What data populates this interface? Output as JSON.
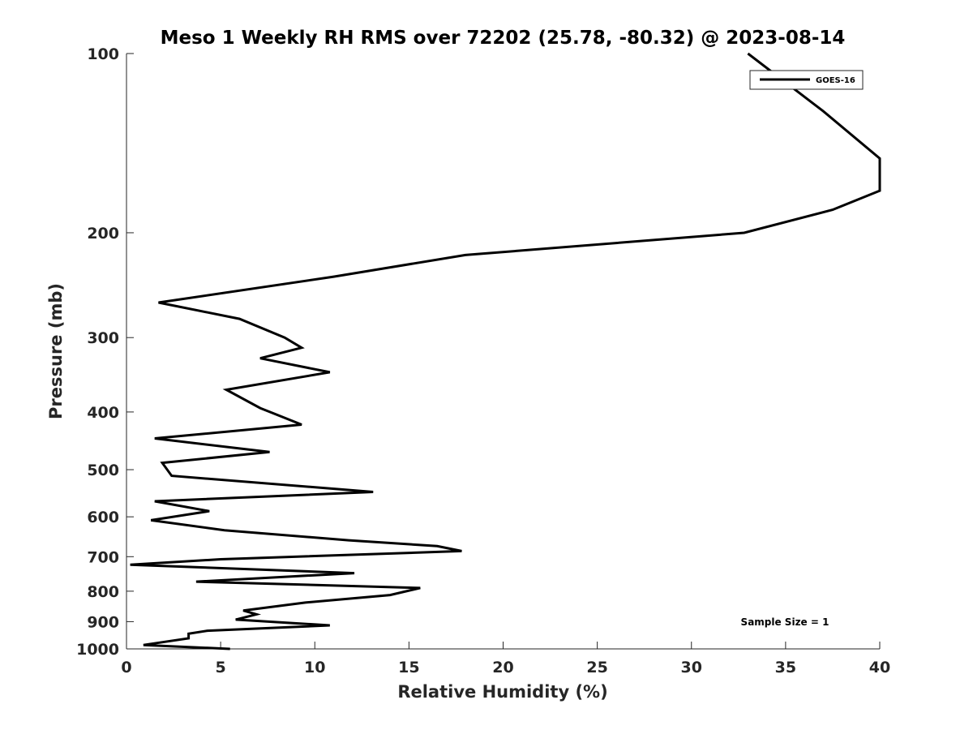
{
  "chart_data": {
    "type": "line",
    "title": "Meso 1 Weekly RH RMS over 72202 (25.78, -80.32) @ 2023-08-14",
    "xlabel": "Relative Humidity (%)",
    "ylabel": "Pressure (mb)",
    "xlim": [
      0,
      40
    ],
    "ylim": [
      100,
      1000
    ],
    "yscale": "log",
    "y_reversed": true,
    "grid": false,
    "legend_position": "top-right",
    "x_ticks": [
      0,
      5,
      10,
      15,
      20,
      25,
      30,
      35,
      40
    ],
    "y_ticks": [
      100,
      200,
      300,
      400,
      500,
      600,
      700,
      800,
      900,
      1000
    ],
    "annotation": "Sample Size = 1",
    "series": [
      {
        "name": "GOES-16",
        "color": "#000000",
        "points": [
          [
            33.0,
            100
          ],
          [
            37.0,
            125
          ],
          [
            40.0,
            150
          ],
          [
            40.0,
            170
          ],
          [
            37.5,
            183
          ],
          [
            32.8,
            200
          ],
          [
            18.0,
            218
          ],
          [
            11.0,
            237
          ],
          [
            1.7,
            262
          ],
          [
            6.0,
            279
          ],
          [
            8.4,
            300
          ],
          [
            9.3,
            312
          ],
          [
            7.1,
            325
          ],
          [
            10.8,
            343
          ],
          [
            5.3,
            367
          ],
          [
            7.1,
            394
          ],
          [
            9.3,
            420
          ],
          [
            1.5,
            443
          ],
          [
            7.6,
            467
          ],
          [
            1.9,
            487
          ],
          [
            2.4,
            512
          ],
          [
            13.1,
            545
          ],
          [
            1.5,
            565
          ],
          [
            4.4,
            587
          ],
          [
            1.3,
            608
          ],
          [
            5.2,
            632
          ],
          [
            11.8,
            657
          ],
          [
            16.5,
            672
          ],
          [
            17.8,
            685
          ],
          [
            5.0,
            707
          ],
          [
            0.2,
            722
          ],
          [
            12.1,
            746
          ],
          [
            3.7,
            771
          ],
          [
            15.6,
            790
          ],
          [
            14.0,
            812
          ],
          [
            9.5,
            836
          ],
          [
            6.2,
            862
          ],
          [
            6.9,
            875
          ],
          [
            5.8,
            893
          ],
          [
            10.8,
            913
          ],
          [
            4.3,
            932
          ],
          [
            3.3,
            943
          ],
          [
            3.3,
            960
          ],
          [
            0.9,
            985
          ],
          [
            5.5,
            1000
          ]
        ]
      }
    ]
  }
}
